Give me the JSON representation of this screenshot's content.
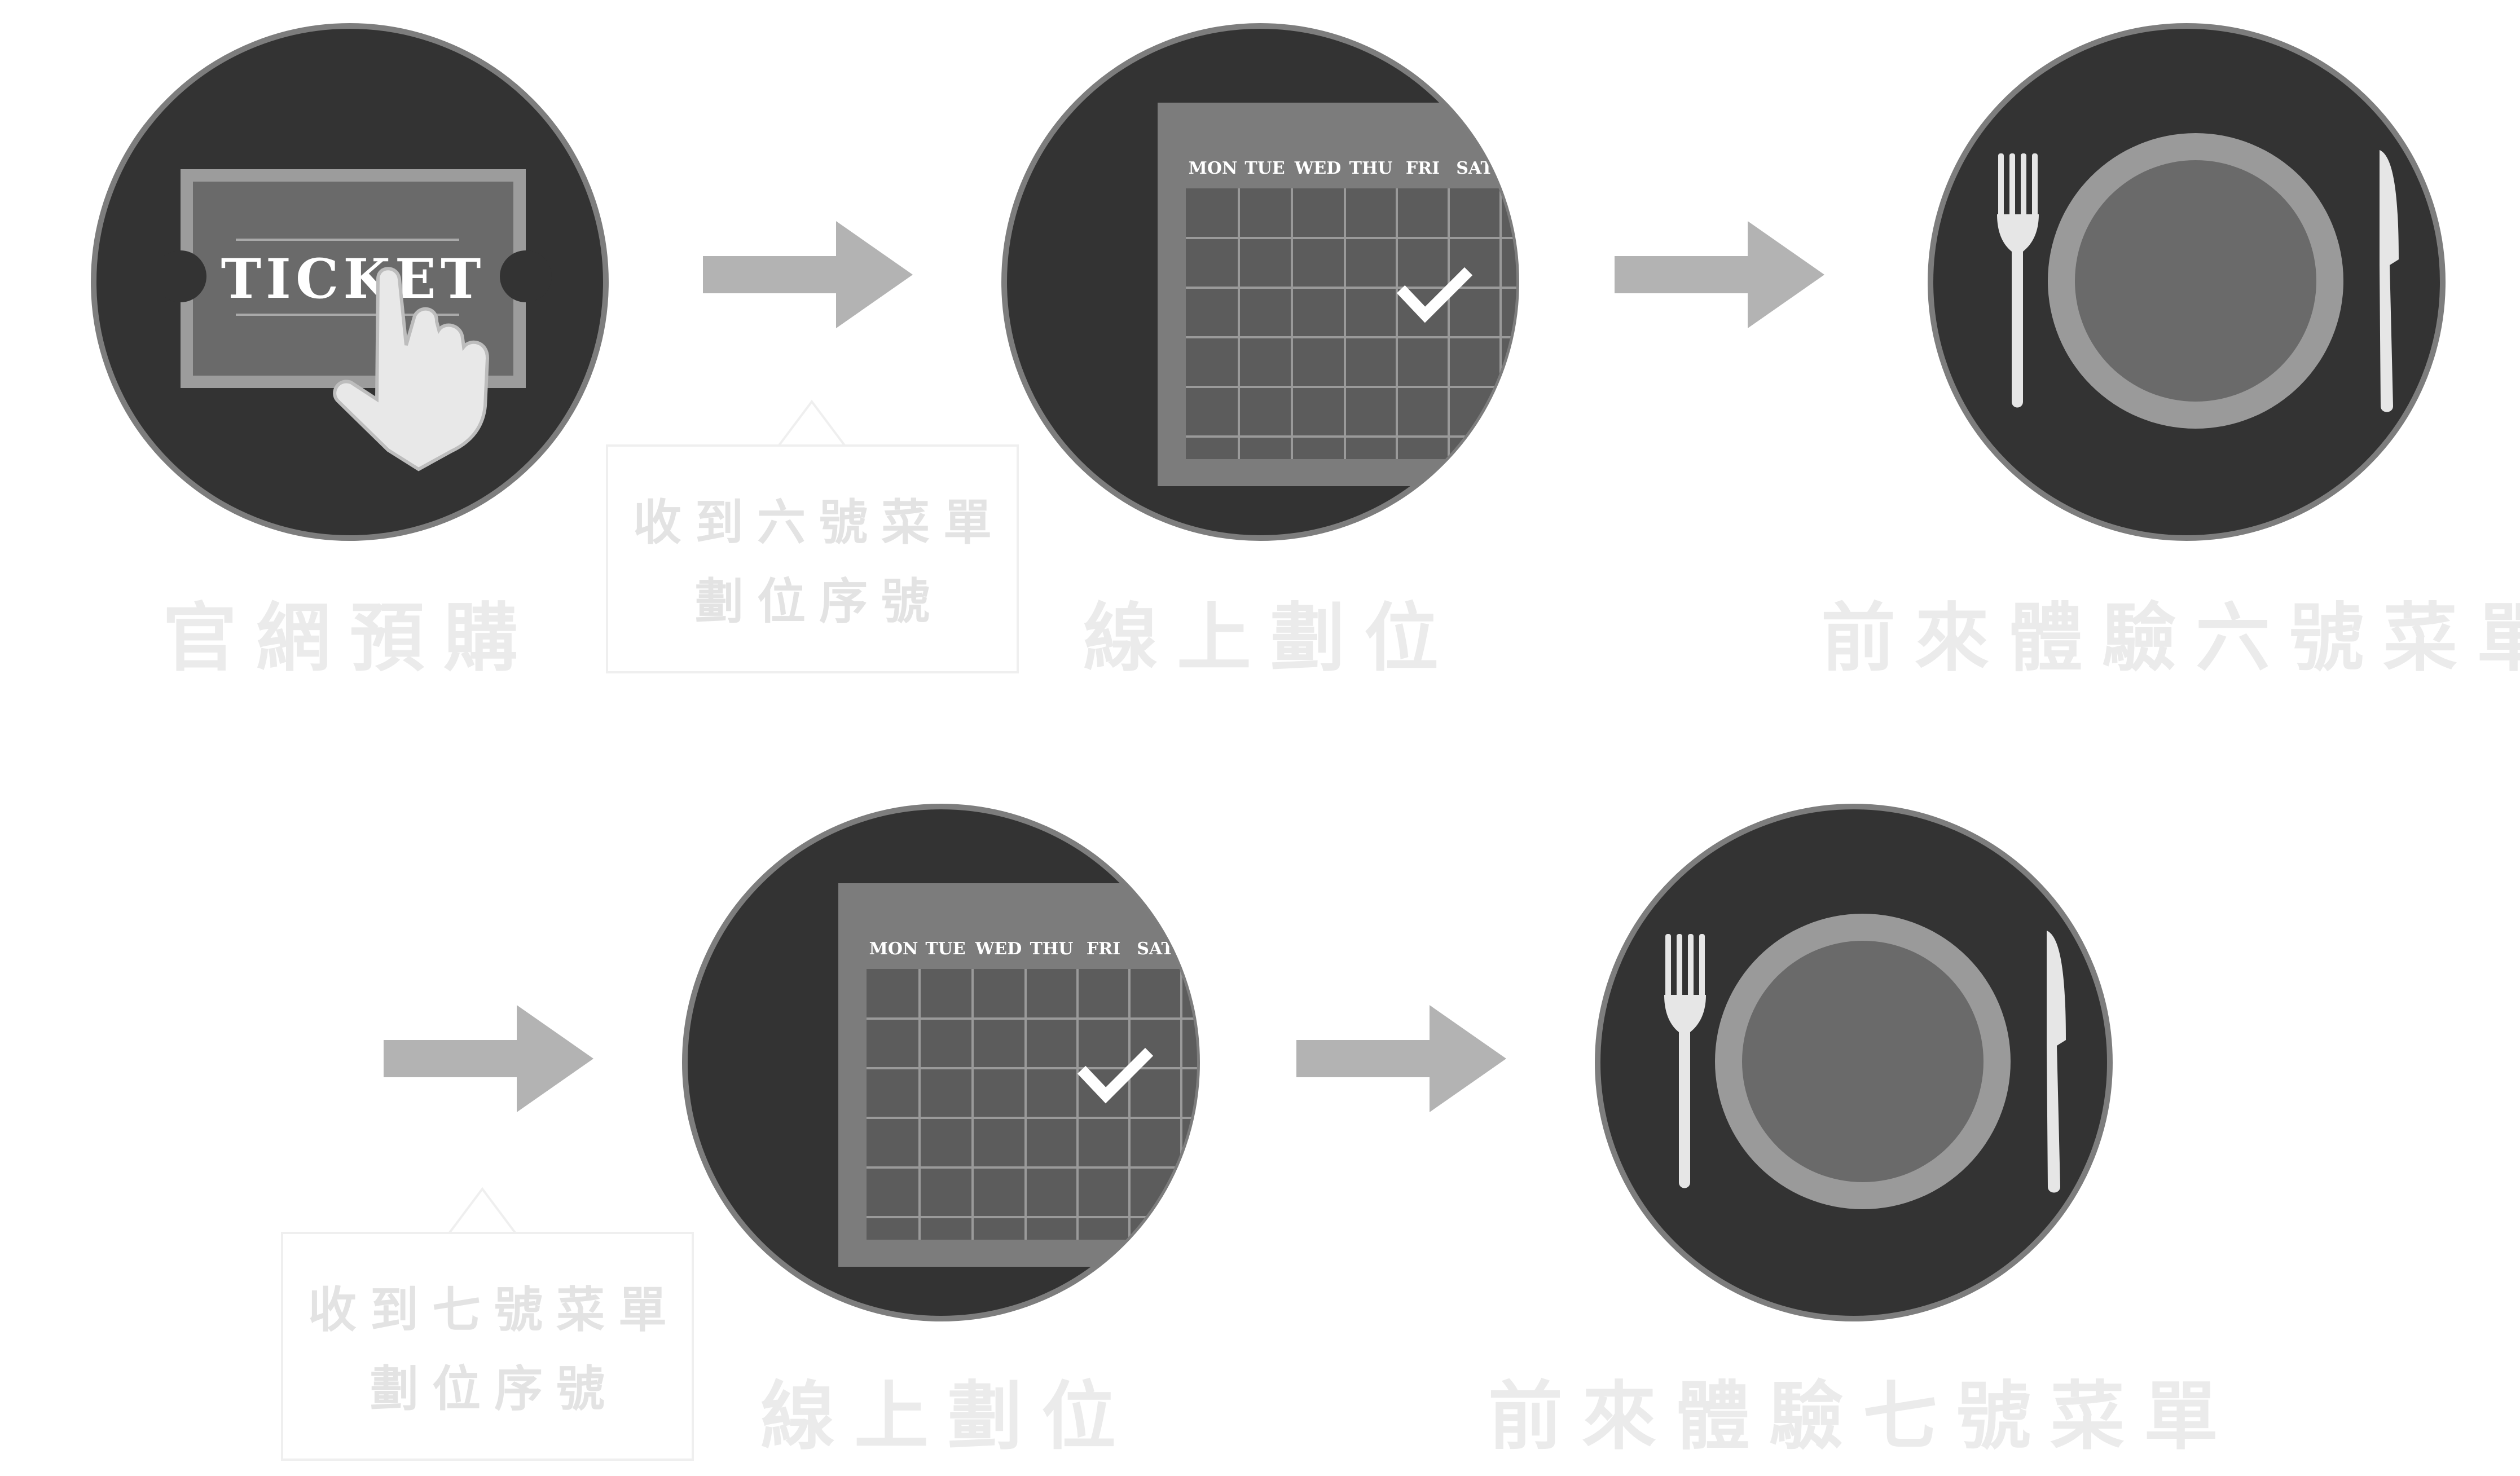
{
  "row1": {
    "steps": [
      {
        "caption": "官網預購",
        "icon": "ticket-purchase-icon",
        "ticket_label": "TICKET"
      },
      {
        "caption": "線上劃位",
        "icon": "calendar-check-icon",
        "days": [
          "MON",
          "TUE",
          "WED",
          "THU",
          "FRI",
          "SAT"
        ]
      },
      {
        "caption": "前來體驗六號菜單",
        "icon": "plate-cutlery-icon"
      }
    ],
    "callout": {
      "line1": "收到六號菜單",
      "line2": "劃位序號"
    }
  },
  "row2": {
    "steps": [
      {
        "caption": "線上劃位",
        "icon": "calendar-check-icon",
        "days": [
          "MON",
          "TUE",
          "WED",
          "THU",
          "FRI",
          "SAT"
        ]
      },
      {
        "caption": "前來體驗七號菜單",
        "icon": "plate-cutlery-icon"
      }
    ],
    "callout": {
      "line1": "收到七號菜單",
      "line2": "劃位序號"
    }
  },
  "colors": {
    "circle_fill": "#333333",
    "circle_border": "#7d7d7d",
    "arrow": "#b3b3b3",
    "caption": "#ebebeb",
    "callout_text": "#e3e3e3"
  }
}
